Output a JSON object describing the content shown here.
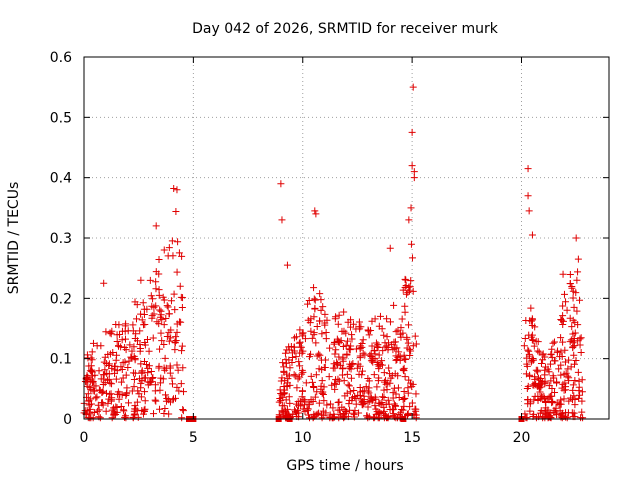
{
  "chart_data": {
    "type": "scatter",
    "title": "Day 042 of 2026, SRMTID for receiver murk",
    "xlabel": "GPS time / hours",
    "ylabel": "SRMTID / TECUs",
    "xlim": [
      0,
      24
    ],
    "ylim": [
      0,
      0.6
    ],
    "x_ticks": [
      0,
      5,
      10,
      15,
      20
    ],
    "x_tick_labels": [
      "0",
      "5",
      "10",
      "15",
      "20"
    ],
    "y_ticks": [
      0,
      0.1,
      0.2,
      0.3,
      0.4,
      0.5,
      0.6
    ],
    "y_tick_labels": [
      "0",
      "0.1",
      "0.2",
      "0.3",
      "0.4",
      "0.5",
      "0.6"
    ],
    "grid": true,
    "marker": "+",
    "color": "#e00000",
    "zero_markers_x": [
      4.8,
      4.9,
      5.0,
      8.9,
      9.4,
      14.6,
      20.0
    ],
    "envelopes": [
      {
        "x_start": 0.0,
        "x_end": 4.55,
        "points": 360,
        "seed": 11,
        "profile": [
          [
            0.0,
            0.11
          ],
          [
            1.0,
            0.16
          ],
          [
            2.0,
            0.19
          ],
          [
            3.0,
            0.24
          ],
          [
            3.5,
            0.28
          ],
          [
            4.0,
            0.35
          ],
          [
            4.2,
            0.38
          ],
          [
            4.55,
            0.24
          ]
        ],
        "outliers": [
          [
            0.9,
            0.225
          ],
          [
            2.6,
            0.23
          ],
          [
            3.3,
            0.32
          ],
          [
            4.1,
            0.382
          ],
          [
            4.25,
            0.38
          ],
          [
            4.4,
            0.22
          ]
        ]
      },
      {
        "x_start": 8.9,
        "x_end": 15.2,
        "points": 560,
        "seed": 23,
        "profile": [
          [
            8.9,
            0.1
          ],
          [
            9.5,
            0.14
          ],
          [
            10.0,
            0.2
          ],
          [
            10.5,
            0.26
          ],
          [
            11.0,
            0.2
          ],
          [
            12.0,
            0.19
          ],
          [
            13.0,
            0.17
          ],
          [
            14.0,
            0.18
          ],
          [
            14.5,
            0.24
          ],
          [
            15.0,
            0.3
          ],
          [
            15.2,
            0.25
          ]
        ],
        "outliers": [
          [
            9.0,
            0.39
          ],
          [
            9.05,
            0.33
          ],
          [
            9.3,
            0.255
          ],
          [
            10.55,
            0.345
          ],
          [
            10.6,
            0.34
          ],
          [
            14.0,
            0.283
          ],
          [
            14.85,
            0.33
          ],
          [
            14.95,
            0.35
          ],
          [
            15.0,
            0.42
          ],
          [
            15.0,
            0.475
          ],
          [
            15.05,
            0.55
          ],
          [
            15.1,
            0.41
          ],
          [
            15.1,
            0.4
          ]
        ]
      },
      {
        "x_start": 20.1,
        "x_end": 22.8,
        "points": 260,
        "seed": 37,
        "profile": [
          [
            20.1,
            0.16
          ],
          [
            20.4,
            0.2
          ],
          [
            20.8,
            0.14
          ],
          [
            21.3,
            0.12
          ],
          [
            21.8,
            0.2
          ],
          [
            22.2,
            0.25
          ],
          [
            22.5,
            0.28
          ],
          [
            22.8,
            0.14
          ]
        ],
        "outliers": [
          [
            20.3,
            0.415
          ],
          [
            20.3,
            0.37
          ],
          [
            20.35,
            0.345
          ],
          [
            20.5,
            0.305
          ],
          [
            21.9,
            0.24
          ],
          [
            22.5,
            0.3
          ],
          [
            22.6,
            0.265
          ]
        ]
      }
    ]
  }
}
